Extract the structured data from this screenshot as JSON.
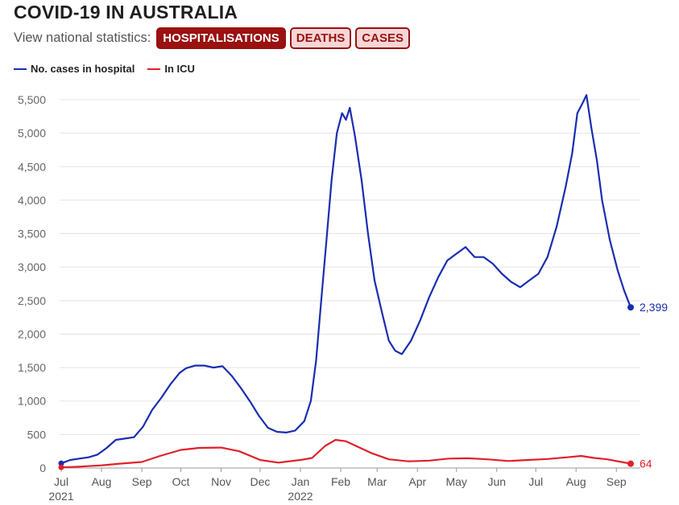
{
  "title": "COVID-19 IN AUSTRALIA",
  "nav": {
    "label": "View national statistics:",
    "buttons": [
      {
        "label": "HOSPITALISATIONS",
        "active": true
      },
      {
        "label": "DEATHS",
        "active": false
      },
      {
        "label": "CASES",
        "active": false
      }
    ]
  },
  "colors": {
    "hospital": "#1a2db0",
    "icu": "#e0202a",
    "accent": "#9a1111",
    "grid": "#e3e3e3"
  },
  "chart_data": {
    "type": "line",
    "ylim": [
      0,
      5600
    ],
    "yticks": [
      0,
      500,
      1000,
      1500,
      2000,
      2500,
      3000,
      3500,
      4000,
      4500,
      5000,
      5500
    ],
    "ytick_labels": [
      "0",
      "500",
      "1,000",
      "1,500",
      "2,000",
      "2,500",
      "3,000",
      "3,500",
      "4,000",
      "4,500",
      "5,000",
      "5,500"
    ],
    "x_start": "2021-07-01",
    "x_end": "2022-09-15",
    "xticks": [
      {
        "date": "2021-07-01",
        "label": "Jul",
        "sub": "2021"
      },
      {
        "date": "2021-08-01",
        "label": "Aug"
      },
      {
        "date": "2021-09-01",
        "label": "Sep"
      },
      {
        "date": "2021-10-01",
        "label": "Oct"
      },
      {
        "date": "2021-11-01",
        "label": "Nov"
      },
      {
        "date": "2021-12-01",
        "label": "Dec"
      },
      {
        "date": "2022-01-01",
        "label": "Jan",
        "sub": "2022"
      },
      {
        "date": "2022-02-01",
        "label": "Feb"
      },
      {
        "date": "2022-03-01",
        "label": "Mar"
      },
      {
        "date": "2022-04-01",
        "label": "Apr"
      },
      {
        "date": "2022-05-01",
        "label": "May"
      },
      {
        "date": "2022-06-01",
        "label": "Jun"
      },
      {
        "date": "2022-07-01",
        "label": "Jul"
      },
      {
        "date": "2022-08-01",
        "label": "Aug"
      },
      {
        "date": "2022-09-01",
        "label": "Sep"
      }
    ],
    "legend_position": "top-left",
    "grid": true,
    "series": [
      {
        "name": "No. cases in hospital",
        "color": "#1a2db0",
        "end_label": "2,399",
        "points": [
          [
            "2021-07-01",
            70
          ],
          [
            "2021-07-08",
            120
          ],
          [
            "2021-07-15",
            140
          ],
          [
            "2021-07-22",
            160
          ],
          [
            "2021-07-29",
            200
          ],
          [
            "2021-08-05",
            300
          ],
          [
            "2021-08-12",
            420
          ],
          [
            "2021-08-19",
            440
          ],
          [
            "2021-08-26",
            460
          ],
          [
            "2021-09-02",
            620
          ],
          [
            "2021-09-09",
            870
          ],
          [
            "2021-09-16",
            1050
          ],
          [
            "2021-09-23",
            1250
          ],
          [
            "2021-09-30",
            1420
          ],
          [
            "2021-10-05",
            1490
          ],
          [
            "2021-10-12",
            1530
          ],
          [
            "2021-10-19",
            1530
          ],
          [
            "2021-10-26",
            1500
          ],
          [
            "2021-11-02",
            1520
          ],
          [
            "2021-11-09",
            1380
          ],
          [
            "2021-11-16",
            1200
          ],
          [
            "2021-11-23",
            1000
          ],
          [
            "2021-11-30",
            780
          ],
          [
            "2021-12-07",
            600
          ],
          [
            "2021-12-14",
            540
          ],
          [
            "2021-12-21",
            530
          ],
          [
            "2021-12-28",
            560
          ],
          [
            "2022-01-04",
            700
          ],
          [
            "2022-01-09",
            1000
          ],
          [
            "2022-01-13",
            1600
          ],
          [
            "2022-01-17",
            2500
          ],
          [
            "2022-01-21",
            3400
          ],
          [
            "2022-01-25",
            4300
          ],
          [
            "2022-01-29",
            5000
          ],
          [
            "2022-02-02",
            5300
          ],
          [
            "2022-02-05",
            5200
          ],
          [
            "2022-02-08",
            5380
          ],
          [
            "2022-02-12",
            4950
          ],
          [
            "2022-02-17",
            4300
          ],
          [
            "2022-02-22",
            3500
          ],
          [
            "2022-02-27",
            2800
          ],
          [
            "2022-03-05",
            2300
          ],
          [
            "2022-03-10",
            1900
          ],
          [
            "2022-03-15",
            1750
          ],
          [
            "2022-03-20",
            1700
          ],
          [
            "2022-03-27",
            1900
          ],
          [
            "2022-04-03",
            2200
          ],
          [
            "2022-04-10",
            2550
          ],
          [
            "2022-04-17",
            2850
          ],
          [
            "2022-04-24",
            3100
          ],
          [
            "2022-05-01",
            3200
          ],
          [
            "2022-05-08",
            3300
          ],
          [
            "2022-05-15",
            3150
          ],
          [
            "2022-05-22",
            3150
          ],
          [
            "2022-05-29",
            3050
          ],
          [
            "2022-06-05",
            2900
          ],
          [
            "2022-06-12",
            2780
          ],
          [
            "2022-06-19",
            2700
          ],
          [
            "2022-06-26",
            2800
          ],
          [
            "2022-07-03",
            2900
          ],
          [
            "2022-07-10",
            3150
          ],
          [
            "2022-07-17",
            3600
          ],
          [
            "2022-07-24",
            4200
          ],
          [
            "2022-07-29",
            4700
          ],
          [
            "2022-08-02",
            5300
          ],
          [
            "2022-08-06",
            5450
          ],
          [
            "2022-08-09",
            5570
          ],
          [
            "2022-08-13",
            5050
          ],
          [
            "2022-08-17",
            4600
          ],
          [
            "2022-08-21",
            4000
          ],
          [
            "2022-08-27",
            3400
          ],
          [
            "2022-09-02",
            2950
          ],
          [
            "2022-09-07",
            2650
          ],
          [
            "2022-09-12",
            2399
          ]
        ]
      },
      {
        "name": "In ICU",
        "color": "#e0202a",
        "end_label": "64",
        "points": [
          [
            "2021-07-01",
            10
          ],
          [
            "2021-07-15",
            20
          ],
          [
            "2021-08-01",
            40
          ],
          [
            "2021-08-15",
            65
          ],
          [
            "2021-09-01",
            90
          ],
          [
            "2021-09-15",
            180
          ],
          [
            "2021-10-01",
            270
          ],
          [
            "2021-10-15",
            300
          ],
          [
            "2021-11-01",
            305
          ],
          [
            "2021-11-15",
            250
          ],
          [
            "2021-12-01",
            120
          ],
          [
            "2021-12-15",
            80
          ],
          [
            "2022-01-01",
            120
          ],
          [
            "2022-01-10",
            150
          ],
          [
            "2022-01-20",
            330
          ],
          [
            "2022-01-28",
            420
          ],
          [
            "2022-02-05",
            400
          ],
          [
            "2022-02-15",
            310
          ],
          [
            "2022-02-25",
            220
          ],
          [
            "2022-03-10",
            130
          ],
          [
            "2022-03-25",
            100
          ],
          [
            "2022-04-10",
            110
          ],
          [
            "2022-04-25",
            140
          ],
          [
            "2022-05-10",
            145
          ],
          [
            "2022-05-25",
            130
          ],
          [
            "2022-06-10",
            105
          ],
          [
            "2022-06-25",
            120
          ],
          [
            "2022-07-10",
            135
          ],
          [
            "2022-07-25",
            160
          ],
          [
            "2022-08-05",
            180
          ],
          [
            "2022-08-15",
            150
          ],
          [
            "2022-08-25",
            130
          ],
          [
            "2022-09-05",
            90
          ],
          [
            "2022-09-12",
            64
          ]
        ]
      }
    ]
  }
}
